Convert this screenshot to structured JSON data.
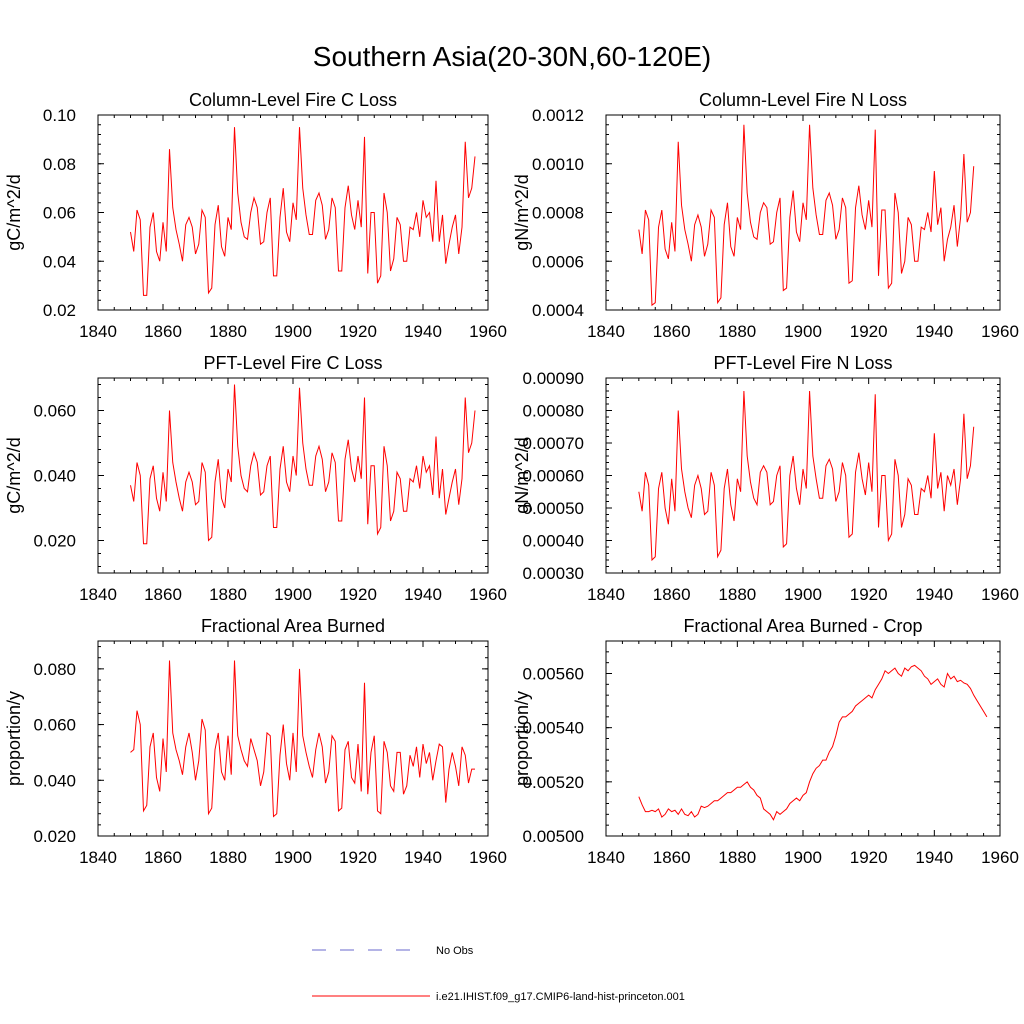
{
  "figure": {
    "title": "Southern Asia(20-30N,60-120E)"
  },
  "legend": {
    "entries": [
      {
        "label": "No Obs",
        "color": "#6a6acd",
        "dashed": true
      },
      {
        "label": "i.e21.IHIST.f09_g17.CMIP6-land-hist-princeton.001",
        "color": "#ff0000",
        "dashed": false
      }
    ]
  },
  "chart_data": [
    {
      "type": "line",
      "title": "Column-Level Fire C Loss",
      "ylabel": "gC/m^2/d",
      "xlim": [
        1840,
        1960
      ],
      "ylim": [
        0.02,
        0.1
      ],
      "xticks": [
        "1840",
        "1860",
        "1880",
        "1900",
        "1920",
        "1940",
        "1960"
      ],
      "yticks": [
        "0.02",
        "0.04",
        "0.06",
        "0.08",
        "0.10"
      ],
      "x_start": 1850,
      "series": [
        {
          "color": "#ff0000",
          "values": [
            0.052,
            0.044,
            0.061,
            0.057,
            0.026,
            0.026,
            0.054,
            0.06,
            0.044,
            0.04,
            0.056,
            0.044,
            0.086,
            0.062,
            0.053,
            0.047,
            0.04,
            0.055,
            0.058,
            0.054,
            0.043,
            0.047,
            0.061,
            0.058,
            0.027,
            0.029,
            0.055,
            0.063,
            0.046,
            0.042,
            0.058,
            0.053,
            0.095,
            0.068,
            0.056,
            0.05,
            0.049,
            0.06,
            0.066,
            0.062,
            0.047,
            0.048,
            0.06,
            0.066,
            0.034,
            0.034,
            0.058,
            0.07,
            0.052,
            0.048,
            0.064,
            0.057,
            0.095,
            0.07,
            0.059,
            0.051,
            0.051,
            0.065,
            0.068,
            0.063,
            0.049,
            0.053,
            0.066,
            0.062,
            0.036,
            0.036,
            0.062,
            0.071,
            0.059,
            0.053,
            0.065,
            0.054,
            0.091,
            0.035,
            0.06,
            0.06,
            0.031,
            0.034,
            0.068,
            0.06,
            0.036,
            0.041,
            0.058,
            0.055,
            0.04,
            0.04,
            0.054,
            0.053,
            0.06,
            0.05,
            0.065,
            0.058,
            0.06,
            0.048,
            0.073,
            0.048,
            0.059,
            0.039,
            0.047,
            0.054,
            0.059,
            0.043,
            0.054,
            0.089,
            0.066,
            0.07,
            0.083
          ]
        }
      ]
    },
    {
      "type": "line",
      "title": "Column-Level Fire N Loss",
      "ylabel": "gN/m^2/d",
      "xlim": [
        1840,
        1960
      ],
      "ylim": [
        0.0004,
        0.0012
      ],
      "xticks": [
        "1840",
        "1860",
        "1880",
        "1900",
        "1920",
        "1940",
        "1960"
      ],
      "yticks": [
        "0.0004",
        "0.0006",
        "0.0008",
        "0.0010",
        "0.0012"
      ],
      "x_start": 1850,
      "series": [
        {
          "color": "#ff0000",
          "values": [
            0.00073,
            0.00063,
            0.00081,
            0.00077,
            0.00042,
            0.00043,
            0.00074,
            0.00081,
            0.00065,
            0.00061,
            0.00076,
            0.00064,
            0.00109,
            0.00083,
            0.00073,
            0.00067,
            0.0006,
            0.00075,
            0.00079,
            0.00074,
            0.00062,
            0.00067,
            0.00081,
            0.00078,
            0.00043,
            0.00045,
            0.00075,
            0.00084,
            0.00066,
            0.00062,
            0.00078,
            0.00073,
            0.00116,
            0.00088,
            0.00076,
            0.0007,
            0.00069,
            0.0008,
            0.00084,
            0.00082,
            0.00067,
            0.00068,
            0.0008,
            0.00086,
            0.00048,
            0.00049,
            0.00078,
            0.00089,
            0.00072,
            0.00068,
            0.00084,
            0.00077,
            0.00116,
            0.0009,
            0.00079,
            0.00071,
            0.00071,
            0.00085,
            0.00088,
            0.00083,
            0.00069,
            0.00073,
            0.00086,
            0.00082,
            0.00051,
            0.00052,
            0.00082,
            0.00091,
            0.00079,
            0.00073,
            0.00085,
            0.00074,
            0.00114,
            0.00054,
            0.00081,
            0.00081,
            0.00049,
            0.00051,
            0.00088,
            0.0008,
            0.00055,
            0.0006,
            0.00078,
            0.00075,
            0.0006,
            0.0006,
            0.00074,
            0.00073,
            0.0008,
            0.00072,
            0.00097,
            0.00075,
            0.00082,
            0.0006,
            0.00069,
            0.00074,
            0.00083,
            0.00066,
            0.00078,
            0.00104,
            0.00076,
            0.0008,
            0.00099
          ]
        }
      ]
    },
    {
      "type": "line",
      "title": "PFT-Level Fire C Loss",
      "ylabel": "gC/m^2/d",
      "xlim": [
        1840,
        1960
      ],
      "ylim": [
        0.01,
        0.07
      ],
      "xticks": [
        "1840",
        "1860",
        "1880",
        "1900",
        "1920",
        "1940",
        "1960"
      ],
      "yticks": [
        "0.020",
        "0.040",
        "0.060"
      ],
      "ytick_values": [
        0.02,
        0.04,
        0.06
      ],
      "x_start": 1850,
      "series": [
        {
          "color": "#ff0000",
          "values": [
            0.037,
            0.032,
            0.044,
            0.04,
            0.019,
            0.019,
            0.039,
            0.043,
            0.033,
            0.029,
            0.041,
            0.032,
            0.06,
            0.044,
            0.038,
            0.033,
            0.029,
            0.038,
            0.041,
            0.038,
            0.031,
            0.032,
            0.044,
            0.041,
            0.02,
            0.021,
            0.038,
            0.045,
            0.033,
            0.03,
            0.042,
            0.038,
            0.068,
            0.049,
            0.04,
            0.036,
            0.035,
            0.043,
            0.047,
            0.044,
            0.034,
            0.035,
            0.043,
            0.046,
            0.024,
            0.024,
            0.042,
            0.049,
            0.038,
            0.035,
            0.046,
            0.04,
            0.067,
            0.05,
            0.042,
            0.037,
            0.037,
            0.046,
            0.049,
            0.045,
            0.035,
            0.038,
            0.047,
            0.044,
            0.026,
            0.026,
            0.045,
            0.051,
            0.042,
            0.038,
            0.046,
            0.039,
            0.064,
            0.025,
            0.043,
            0.043,
            0.022,
            0.024,
            0.049,
            0.043,
            0.026,
            0.029,
            0.041,
            0.039,
            0.029,
            0.029,
            0.039,
            0.038,
            0.043,
            0.036,
            0.046,
            0.041,
            0.043,
            0.034,
            0.052,
            0.033,
            0.042,
            0.028,
            0.033,
            0.038,
            0.042,
            0.031,
            0.039,
            0.064,
            0.047,
            0.05,
            0.06
          ]
        }
      ]
    },
    {
      "type": "line",
      "title": "PFT-Level Fire N Loss",
      "ylabel": "gN/m^2/d",
      "xlim": [
        1840,
        1960
      ],
      "ylim": [
        0.0003,
        0.0009
      ],
      "xticks": [
        "1840",
        "1860",
        "1880",
        "1900",
        "1920",
        "1940",
        "1960"
      ],
      "yticks": [
        "0.00030",
        "0.00040",
        "0.00050",
        "0.00060",
        "0.00070",
        "0.00080",
        "0.00090"
      ],
      "x_start": 1850,
      "series": [
        {
          "color": "#ff0000",
          "values": [
            0.00055,
            0.00049,
            0.00061,
            0.00057,
            0.00034,
            0.00035,
            0.00056,
            0.00061,
            0.0005,
            0.00045,
            0.00059,
            0.00049,
            0.0008,
            0.00062,
            0.00055,
            0.0005,
            0.00047,
            0.00057,
            0.0006,
            0.00056,
            0.00048,
            0.00049,
            0.00061,
            0.00057,
            0.00035,
            0.00037,
            0.00056,
            0.00062,
            0.00051,
            0.00046,
            0.00059,
            0.00055,
            0.00086,
            0.00066,
            0.00058,
            0.00053,
            0.00051,
            0.00061,
            0.00063,
            0.00061,
            0.00051,
            0.00052,
            0.0006,
            0.00063,
            0.00038,
            0.00039,
            0.0006,
            0.00066,
            0.00056,
            0.00051,
            0.00062,
            0.00056,
            0.00086,
            0.00066,
            0.00059,
            0.00053,
            0.00053,
            0.00063,
            0.00065,
            0.00062,
            0.00052,
            0.00055,
            0.00064,
            0.0006,
            0.00041,
            0.00042,
            0.00061,
            0.00067,
            0.00059,
            0.00054,
            0.00064,
            0.00055,
            0.00085,
            0.00044,
            0.0006,
            0.0006,
            0.0004,
            0.00042,
            0.00065,
            0.0006,
            0.00044,
            0.00048,
            0.00059,
            0.00057,
            0.00048,
            0.00048,
            0.00056,
            0.00055,
            0.0006,
            0.00053,
            0.00073,
            0.00056,
            0.00061,
            0.00049,
            0.0006,
            0.00057,
            0.00062,
            0.00051,
            0.00059,
            0.00079,
            0.00059,
            0.00063,
            0.00075
          ]
        }
      ]
    },
    {
      "type": "line",
      "title": "Fractional Area Burned",
      "ylabel": "proportion/y",
      "xlim": [
        1840,
        1960
      ],
      "ylim": [
        0.02,
        0.09
      ],
      "xticks": [
        "1840",
        "1860",
        "1880",
        "1900",
        "1920",
        "1940",
        "1960"
      ],
      "yticks": [
        "0.020",
        "0.040",
        "0.060",
        "0.080"
      ],
      "ytick_values": [
        0.02,
        0.04,
        0.06,
        0.08
      ],
      "x_start": 1850,
      "series": [
        {
          "color": "#ff0000",
          "values": [
            0.05,
            0.051,
            0.065,
            0.06,
            0.029,
            0.031,
            0.052,
            0.057,
            0.041,
            0.036,
            0.055,
            0.043,
            0.083,
            0.057,
            0.051,
            0.047,
            0.042,
            0.052,
            0.057,
            0.05,
            0.04,
            0.047,
            0.062,
            0.058,
            0.028,
            0.03,
            0.051,
            0.057,
            0.043,
            0.04,
            0.056,
            0.042,
            0.083,
            0.056,
            0.051,
            0.047,
            0.045,
            0.055,
            0.051,
            0.047,
            0.038,
            0.043,
            0.057,
            0.056,
            0.027,
            0.028,
            0.049,
            0.06,
            0.046,
            0.04,
            0.057,
            0.043,
            0.08,
            0.056,
            0.05,
            0.045,
            0.041,
            0.051,
            0.057,
            0.052,
            0.039,
            0.043,
            0.056,
            0.054,
            0.029,
            0.03,
            0.051,
            0.054,
            0.041,
            0.039,
            0.053,
            0.036,
            0.075,
            0.035,
            0.05,
            0.056,
            0.029,
            0.028,
            0.054,
            0.05,
            0.038,
            0.036,
            0.05,
            0.05,
            0.035,
            0.038,
            0.049,
            0.045,
            0.052,
            0.041,
            0.053,
            0.046,
            0.05,
            0.04,
            0.047,
            0.053,
            0.052,
            0.032,
            0.044,
            0.05,
            0.045,
            0.038,
            0.052,
            0.049,
            0.039,
            0.044,
            0.044
          ]
        }
      ]
    },
    {
      "type": "line",
      "title": "Fractional Area Burned - Crop",
      "ylabel": "proportion/y",
      "xlim": [
        1840,
        1960
      ],
      "ylim": [
        0.005,
        0.00572
      ],
      "xticks": [
        "1840",
        "1860",
        "1880",
        "1900",
        "1920",
        "1940",
        "1960"
      ],
      "yticks": [
        "0.00500",
        "0.00520",
        "0.00540",
        "0.00560"
      ],
      "ytick_values": [
        0.005,
        0.0052,
        0.0054,
        0.0056
      ],
      "x_start": 1850,
      "series": [
        {
          "color": "#ff0000",
          "values": [
            0.005145,
            0.005115,
            0.00509,
            0.00509,
            0.005095,
            0.00509,
            0.0051,
            0.00507,
            0.00508,
            0.0051,
            0.00509,
            0.005095,
            0.00508,
            0.0051,
            0.00508,
            0.005075,
            0.00509,
            0.00507,
            0.00508,
            0.00511,
            0.005105,
            0.00511,
            0.00512,
            0.00513,
            0.00513,
            0.00514,
            0.00515,
            0.00516,
            0.00516,
            0.00517,
            0.00518,
            0.00518,
            0.00519,
            0.0052,
            0.00518,
            0.00517,
            0.00515,
            0.00514,
            0.0051,
            0.00509,
            0.00508,
            0.00506,
            0.00509,
            0.00508,
            0.00509,
            0.0051,
            0.00512,
            0.00513,
            0.00514,
            0.00513,
            0.00515,
            0.00516,
            0.0052,
            0.00523,
            0.00525,
            0.00526,
            0.00528,
            0.00528,
            0.00531,
            0.00533,
            0.00537,
            0.00542,
            0.00544,
            0.00544,
            0.00545,
            0.00546,
            0.00548,
            0.00549,
            0.0055,
            0.00551,
            0.00552,
            0.00551,
            0.00554,
            0.00556,
            0.00558,
            0.00561,
            0.0056,
            0.00561,
            0.00562,
            0.0056,
            0.00559,
            0.00562,
            0.00561,
            0.005625,
            0.00563,
            0.00562,
            0.00561,
            0.00559,
            0.00558,
            0.00556,
            0.00557,
            0.00558,
            0.00556,
            0.00555,
            0.0056,
            0.00558,
            0.00559,
            0.00557,
            0.005575,
            0.005565,
            0.00556,
            0.005545,
            0.00552,
            0.0055,
            0.00548,
            0.00546,
            0.00544
          ]
        }
      ]
    }
  ]
}
